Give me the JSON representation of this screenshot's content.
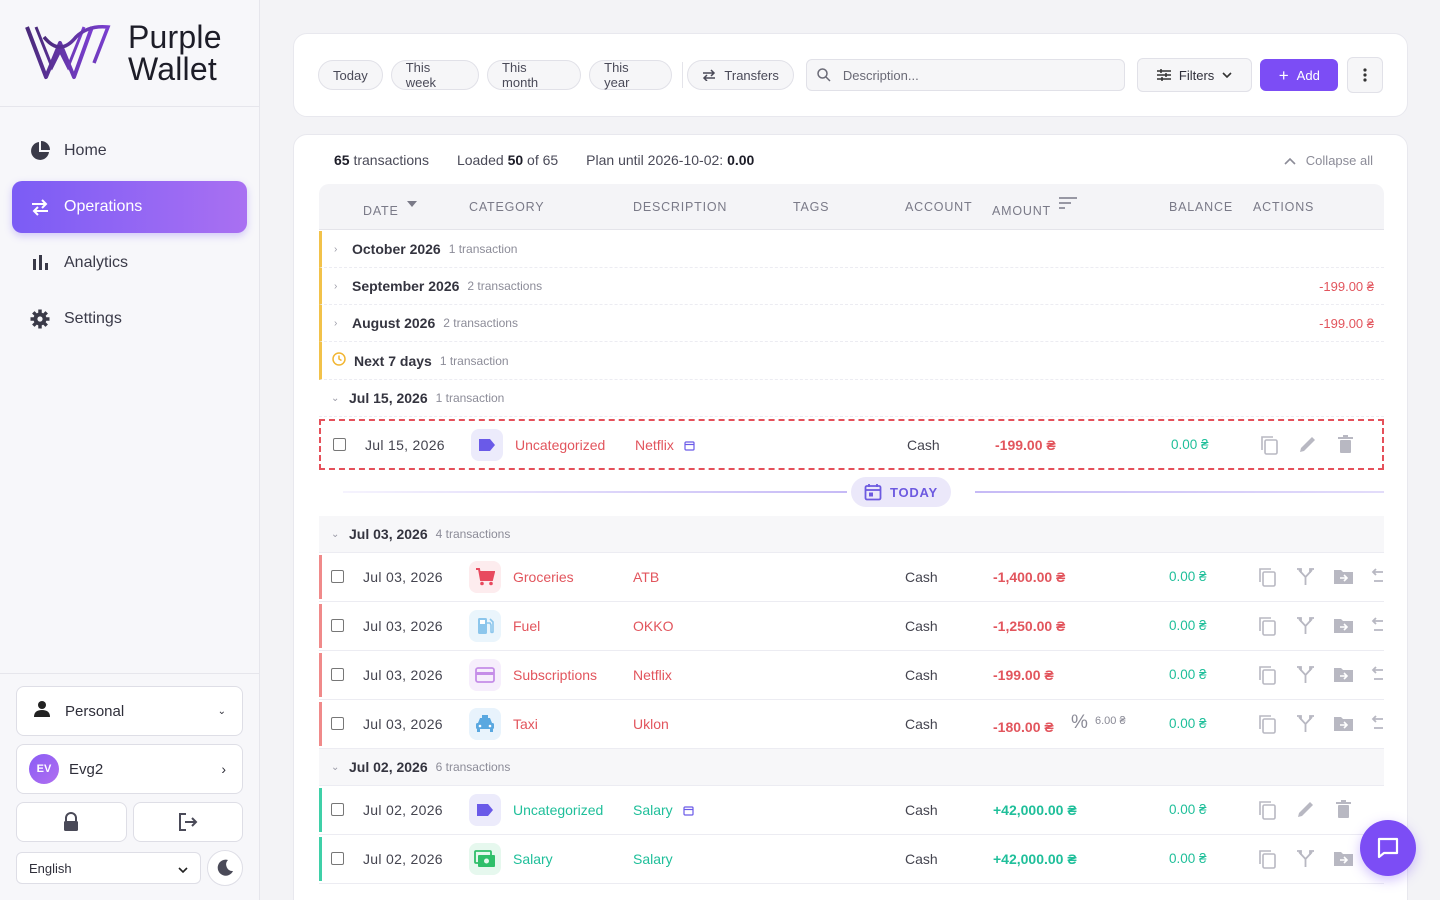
{
  "brand": {
    "line1": "Purple",
    "line2": "Wallet"
  },
  "nav": [
    {
      "label": "Home",
      "icon": "pie-chart-icon"
    },
    {
      "label": "Operations",
      "icon": "transfer-icon",
      "active": true
    },
    {
      "label": "Analytics",
      "icon": "bar-chart-icon"
    },
    {
      "label": "Settings",
      "icon": "gear-icon"
    }
  ],
  "sidebar_bottom": {
    "workspace": "Personal",
    "user_initials": "EV",
    "user_name": "Evg2",
    "language": "English"
  },
  "toolbar": {
    "chips": [
      "Today",
      "This week",
      "This month",
      "This year"
    ],
    "transfers": "Transfers",
    "search_placeholder": "Description...",
    "filters": "Filters",
    "add": "Add"
  },
  "summary": {
    "count": "65",
    "count_label": "transactions",
    "loaded_prefix": "Loaded",
    "loaded": "50",
    "loaded_of": "of 65",
    "plan_label": "Plan until 2026-10-02:",
    "plan_value": "0.00",
    "collapse": "Collapse all"
  },
  "columns": {
    "date": "DATE",
    "category": "CATEGORY",
    "description": "DESCRIPTION",
    "tags": "TAGS",
    "account": "ACCOUNT",
    "amount": "AMOUNT",
    "balance": "BALANCE",
    "actions": "ACTIONS"
  },
  "groups": [
    {
      "title": "October 2026",
      "count": "1 transaction",
      "total": ""
    },
    {
      "title": "September 2026",
      "count": "2 transactions",
      "total": "-199.00 ₴"
    },
    {
      "title": "August 2026",
      "count": "2 transactions",
      "total": "-199.00 ₴"
    },
    {
      "title": "Next 7 days",
      "count": "1 transaction",
      "total": ""
    }
  ],
  "days": [
    {
      "title": "Jul 15, 2026",
      "count": "1 transaction"
    },
    {
      "title": "Jul 03, 2026",
      "count": "4 transactions"
    },
    {
      "title": "Jul 02, 2026",
      "count": "6 transactions"
    }
  ],
  "today_label": "TODAY",
  "transactions": [
    {
      "date": "Jul 15, 2026",
      "category": "Uncategorized",
      "description": "Netflix",
      "account": "Cash",
      "amount": "-199.00 ₴",
      "balance": "0.00 ₴",
      "icon": "tag-icon",
      "icon_color": "#6a5ae8",
      "icon_bg": "#ecebfb"
    },
    {
      "date": "Jul 03, 2026",
      "category": "Groceries",
      "description": "ATB",
      "account": "Cash",
      "amount": "-1,400.00 ₴",
      "balance": "0.00 ₴",
      "icon": "cart-icon",
      "icon_color": "#e84a5f",
      "icon_bg": "#fdecee"
    },
    {
      "date": "Jul 03, 2026",
      "category": "Fuel",
      "description": "OKKO",
      "account": "Cash",
      "amount": "-1,250.00 ₴",
      "balance": "0.00 ₴",
      "icon": "fuel-icon",
      "icon_color": "#6fb8e8",
      "icon_bg": "#eaf5fc"
    },
    {
      "date": "Jul 03, 2026",
      "category": "Subscriptions",
      "description": "Netflix",
      "account": "Cash",
      "amount": "-199.00 ₴",
      "balance": "0.00 ₴",
      "icon": "card-icon",
      "icon_color": "#c58de8",
      "icon_bg": "#f6eefc"
    },
    {
      "date": "Jul 03, 2026",
      "category": "Taxi",
      "description": "Uklon",
      "account": "Cash",
      "amount": "-180.00 ₴",
      "fee": "6.00 ₴",
      "balance": "0.00 ₴",
      "icon": "taxi-icon",
      "icon_color": "#5aa8e0",
      "icon_bg": "#e8f3fc"
    },
    {
      "date": "Jul 02, 2026",
      "category": "Uncategorized",
      "description": "Salary",
      "account": "Cash",
      "amount": "+42,000.00 ₴",
      "balance": "0.00 ₴",
      "icon": "tag-icon",
      "icon_color": "#6a5ae8",
      "icon_bg": "#ecebfb"
    },
    {
      "date": "Jul 02, 2026",
      "category": "Salary",
      "description": "Salary",
      "account": "Cash",
      "amount": "+42,000.00 ₴",
      "balance": "0.00 ₴",
      "icon": "cash-icon",
      "icon_color": "#2fbf6a",
      "icon_bg": "#e6f8ee"
    }
  ],
  "colors": {
    "accent": "#7c4df5",
    "expense": "#e2555d",
    "income": "#1fbf9a",
    "future": "#f2c24a"
  }
}
